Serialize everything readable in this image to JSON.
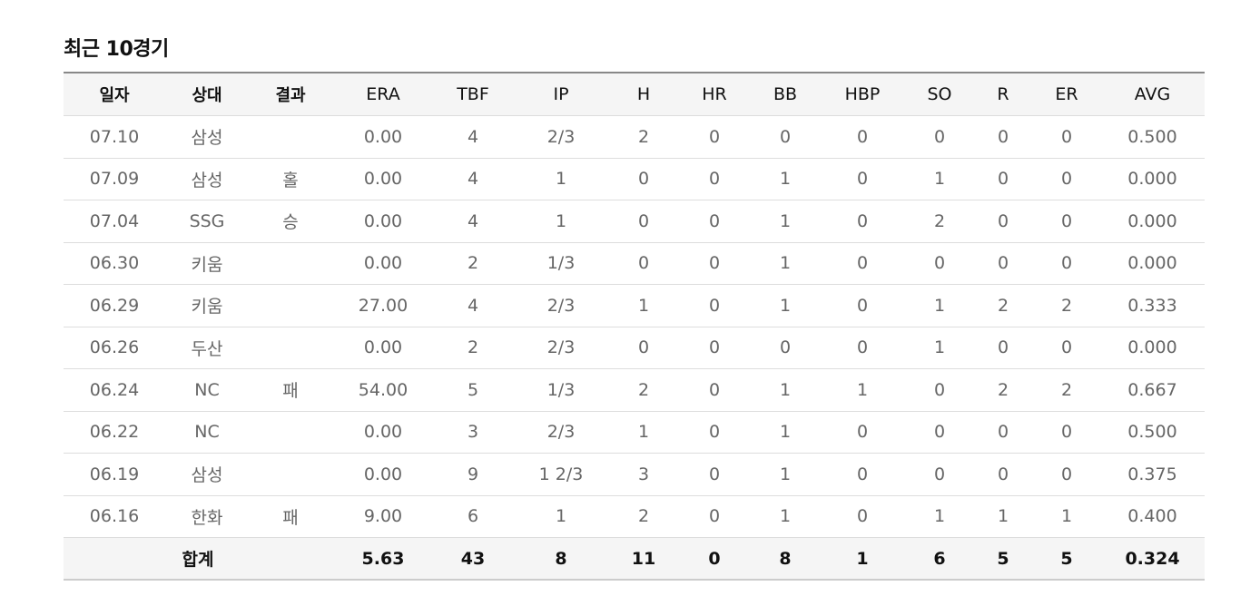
{
  "title": "최근 10경기",
  "columns": [
    "일자",
    "상대",
    "결과",
    "ERA",
    "TBF",
    "IP",
    "H",
    "HR",
    "BB",
    "HBP",
    "SO",
    "R",
    "ER",
    "AVG"
  ],
  "rows": [
    {
      "date": "07.10",
      "opponent": "삼성",
      "result": "",
      "era": "0.00",
      "tbf": "4",
      "ip": "2/3",
      "h": "2",
      "hr": "0",
      "bb": "0",
      "hbp": "0",
      "so": "0",
      "r": "0",
      "er": "0",
      "avg": "0.500"
    },
    {
      "date": "07.09",
      "opponent": "삼성",
      "result": "홀",
      "era": "0.00",
      "tbf": "4",
      "ip": "1",
      "h": "0",
      "hr": "0",
      "bb": "1",
      "hbp": "0",
      "so": "1",
      "r": "0",
      "er": "0",
      "avg": "0.000"
    },
    {
      "date": "07.04",
      "opponent": "SSG",
      "result": "승",
      "era": "0.00",
      "tbf": "4",
      "ip": "1",
      "h": "0",
      "hr": "0",
      "bb": "1",
      "hbp": "0",
      "so": "2",
      "r": "0",
      "er": "0",
      "avg": "0.000"
    },
    {
      "date": "06.30",
      "opponent": "키움",
      "result": "",
      "era": "0.00",
      "tbf": "2",
      "ip": "1/3",
      "h": "0",
      "hr": "0",
      "bb": "1",
      "hbp": "0",
      "so": "0",
      "r": "0",
      "er": "0",
      "avg": "0.000"
    },
    {
      "date": "06.29",
      "opponent": "키움",
      "result": "",
      "era": "27.00",
      "tbf": "4",
      "ip": "2/3",
      "h": "1",
      "hr": "0",
      "bb": "1",
      "hbp": "0",
      "so": "1",
      "r": "2",
      "er": "2",
      "avg": "0.333"
    },
    {
      "date": "06.26",
      "opponent": "두산",
      "result": "",
      "era": "0.00",
      "tbf": "2",
      "ip": "2/3",
      "h": "0",
      "hr": "0",
      "bb": "0",
      "hbp": "0",
      "so": "1",
      "r": "0",
      "er": "0",
      "avg": "0.000"
    },
    {
      "date": "06.24",
      "opponent": "NC",
      "result": "패",
      "era": "54.00",
      "tbf": "5",
      "ip": "1/3",
      "h": "2",
      "hr": "0",
      "bb": "1",
      "hbp": "1",
      "so": "0",
      "r": "2",
      "er": "2",
      "avg": "0.667"
    },
    {
      "date": "06.22",
      "opponent": "NC",
      "result": "",
      "era": "0.00",
      "tbf": "3",
      "ip": "2/3",
      "h": "1",
      "hr": "0",
      "bb": "1",
      "hbp": "0",
      "so": "0",
      "r": "0",
      "er": "0",
      "avg": "0.500"
    },
    {
      "date": "06.19",
      "opponent": "삼성",
      "result": "",
      "era": "0.00",
      "tbf": "9",
      "ip": "1 2/3",
      "h": "3",
      "hr": "0",
      "bb": "1",
      "hbp": "0",
      "so": "0",
      "r": "0",
      "er": "0",
      "avg": "0.375"
    },
    {
      "date": "06.16",
      "opponent": "한화",
      "result": "패",
      "era": "9.00",
      "tbf": "6",
      "ip": "1",
      "h": "2",
      "hr": "0",
      "bb": "1",
      "hbp": "0",
      "so": "1",
      "r": "1",
      "er": "1",
      "avg": "0.400"
    }
  ],
  "total": {
    "label": "합계",
    "era": "5.63",
    "tbf": "43",
    "ip": "8",
    "h": "11",
    "hr": "0",
    "bb": "8",
    "hbp": "1",
    "so": "6",
    "r": "5",
    "er": "5",
    "avg": "0.324"
  }
}
